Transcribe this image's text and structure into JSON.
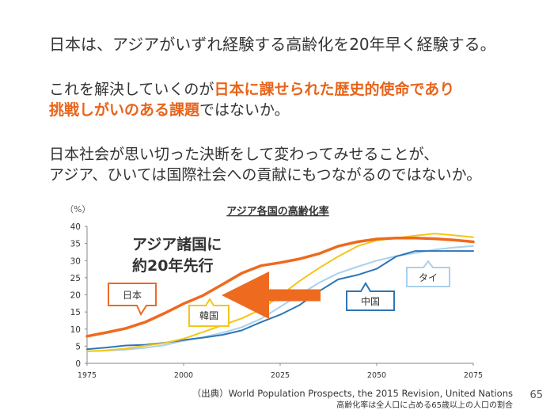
{
  "slide": {
    "line1": "日本は、アジアがいずれ経験する高齢化を20年早く経験する。",
    "line2_pre": "これを解決していくのが",
    "line2_hl": "日本に課せられた歴史的使命であり",
    "line3_hl": "挑戦しがいのある課題",
    "line3_post": "ではないか。",
    "line4": "日本社会が思い切った決断をして変わってみせることが、",
    "line5": "アジア、ひいては国際社会への貢献にもつながるのではないか。",
    "source_line1": "（出典）World Population Prospects, the 2015 Revision, United Nations",
    "source_line2": "高齢化率は全人口に占める65歳以上の人口の割合",
    "page_number": "65"
  },
  "chart_data": {
    "type": "line",
    "title": "アジア各国の高齢化率",
    "ylabel": "（%）",
    "xlim": [
      1975,
      2075
    ],
    "ylim": [
      0,
      40
    ],
    "xticks": [
      1975,
      2000,
      2025,
      2050,
      2075
    ],
    "yticks": [
      0,
      5,
      10,
      15,
      20,
      25,
      30,
      35,
      40
    ],
    "grid": false,
    "x": [
      1975,
      1980,
      1985,
      1990,
      1995,
      2000,
      2005,
      2010,
      2015,
      2020,
      2025,
      2030,
      2035,
      2040,
      2045,
      2050,
      2055,
      2060,
      2065,
      2070,
      2075
    ],
    "series": [
      {
        "name": "日本",
        "color": "#ee6a1f",
        "values": [
          7.9,
          9.0,
          10.2,
          12.0,
          14.6,
          17.4,
          19.8,
          23.0,
          26.3,
          28.5,
          29.4,
          30.5,
          32.0,
          34.2,
          35.5,
          36.3,
          36.6,
          36.6,
          36.4,
          36.0,
          35.5
        ]
      },
      {
        "name": "韓国",
        "color": "#f5c518",
        "values": [
          3.5,
          3.8,
          4.3,
          5.1,
          5.9,
          7.2,
          9.1,
          11.1,
          13.1,
          15.7,
          19.8,
          24.0,
          27.8,
          31.2,
          34.2,
          35.9,
          36.6,
          37.3,
          37.9,
          37.4,
          36.8
        ]
      },
      {
        "name": "中国",
        "color": "#2e75b6",
        "values": [
          4.1,
          4.6,
          5.2,
          5.4,
          6.0,
          6.8,
          7.5,
          8.3,
          9.6,
          12.0,
          14.2,
          17.0,
          21.0,
          24.5,
          25.8,
          27.6,
          31.2,
          32.8,
          32.8,
          32.8,
          32.8
        ]
      },
      {
        "name": "タイ",
        "color": "#a9d1ec",
        "values": [
          3.5,
          3.7,
          4.0,
          4.5,
          5.3,
          6.6,
          7.6,
          8.9,
          10.5,
          13.0,
          16.5,
          20.0,
          23.5,
          26.3,
          28.2,
          30.0,
          31.3,
          32.2,
          33.2,
          33.8,
          34.3
        ]
      }
    ],
    "annotations": {
      "lead_text_1": "アジア諸国に",
      "lead_text_2": "約20年先行",
      "label_japan": "日本",
      "label_korea": "韓国",
      "label_china": "中国",
      "label_thailand": "タイ"
    }
  }
}
